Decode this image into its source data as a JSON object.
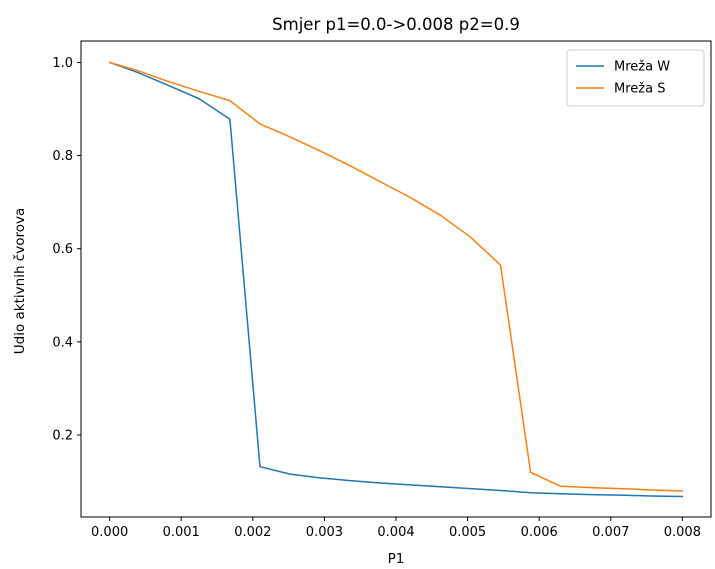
{
  "chart_data": {
    "type": "line",
    "title": "Smjer p1=0.0->0.008 p2=0.9",
    "xlabel": "P1",
    "ylabel": "Udio aktivnih čvorova",
    "xlim": [
      -0.0004,
      0.0084
    ],
    "ylim": [
      0.024,
      1.046
    ],
    "xticks": [
      0.0,
      0.001,
      0.002,
      0.003,
      0.004,
      0.005,
      0.006,
      0.007,
      0.008
    ],
    "xtick_labels": [
      "0.000",
      "0.001",
      "0.002",
      "0.003",
      "0.004",
      "0.005",
      "0.006",
      "0.007",
      "0.008"
    ],
    "yticks": [
      0.2,
      0.4,
      0.6,
      0.8,
      1.0
    ],
    "ytick_labels": [
      "0.2",
      "0.4",
      "0.6",
      "0.8",
      "1.0"
    ],
    "grid": false,
    "legend": "top-right",
    "series": [
      {
        "name": "Mreža W",
        "color": "#1f77b4",
        "x": [
          0.0,
          0.0004,
          0.0008,
          0.00125,
          0.00168,
          0.0021,
          0.00252,
          0.00294,
          0.00336,
          0.00378,
          0.0042,
          0.00462,
          0.00504,
          0.00546,
          0.00588,
          0.0063,
          0.00672,
          0.00714,
          0.00756,
          0.008
        ],
        "values": [
          1.0,
          0.978,
          0.952,
          0.922,
          0.878,
          0.132,
          0.116,
          0.108,
          0.102,
          0.097,
          0.093,
          0.089,
          0.085,
          0.081,
          0.076,
          0.074,
          0.072,
          0.071,
          0.069,
          0.068
        ]
      },
      {
        "name": "Mreža S",
        "color": "#ff7f0e",
        "x": [
          0.0,
          0.0004,
          0.0008,
          0.00125,
          0.00168,
          0.0021,
          0.00252,
          0.00294,
          0.00336,
          0.00378,
          0.0042,
          0.00462,
          0.00504,
          0.00546,
          0.00588,
          0.0063,
          0.00672,
          0.00714,
          0.00756,
          0.008
        ],
        "values": [
          1.0,
          0.982,
          0.96,
          0.938,
          0.918,
          0.868,
          0.84,
          0.81,
          0.778,
          0.744,
          0.71,
          0.672,
          0.625,
          0.565,
          0.12,
          0.09,
          0.087,
          0.085,
          0.082,
          0.08
        ]
      }
    ]
  }
}
